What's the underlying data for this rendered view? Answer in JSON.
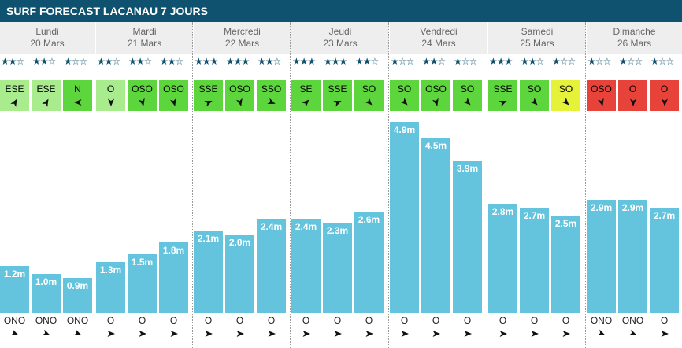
{
  "title": "SURF FORECAST LACANAU 7 JOURS",
  "colors": {
    "header": "#0f5270",
    "bar": "#65c4dd",
    "wind_light_green": "#a8ec8e",
    "wind_green": "#5cd63c",
    "wind_yellow": "#e6f23a",
    "wind_red": "#e8433a"
  },
  "days": [
    {
      "name": "Lundi",
      "date": "20 Mars"
    },
    {
      "name": "Mardi",
      "date": "21 Mars"
    },
    {
      "name": "Mercredi",
      "date": "22 Mars"
    },
    {
      "name": "Jeudi",
      "date": "23 Mars"
    },
    {
      "name": "Vendredi",
      "date": "24 Mars"
    },
    {
      "name": "Samedi",
      "date": "25 Mars"
    },
    {
      "name": "Dimanche",
      "date": "26 Mars"
    }
  ],
  "chart_data": {
    "type": "bar",
    "title": "SURF FORECAST LACANAU 7 JOURS",
    "unit": "m",
    "ylim": [
      0,
      5.5
    ],
    "categories": [
      "Lundi-1",
      "Lundi-2",
      "Lundi-3",
      "Mardi-1",
      "Mardi-2",
      "Mardi-3",
      "Mercredi-1",
      "Mercredi-2",
      "Mercredi-3",
      "Jeudi-1",
      "Jeudi-2",
      "Jeudi-3",
      "Vendredi-1",
      "Vendredi-2",
      "Vendredi-3",
      "Samedi-1",
      "Samedi-2",
      "Samedi-3",
      "Dimanche-1",
      "Dimanche-2",
      "Dimanche-3"
    ],
    "values": [
      1.2,
      1.0,
      0.9,
      1.3,
      1.5,
      1.8,
      2.1,
      2.0,
      2.4,
      2.4,
      2.3,
      2.6,
      4.9,
      4.5,
      3.9,
      2.8,
      2.7,
      2.5,
      2.9,
      2.9,
      2.7
    ],
    "value_labels": [
      "1.2m",
      "1.0m",
      "0.9m",
      "1.3m",
      "1.5m",
      "1.8m",
      "2.1m",
      "2.0m",
      "2.4m",
      "2.4m",
      "2.3m",
      "2.6m",
      "4.9m",
      "4.5m",
      "3.9m",
      "2.8m",
      "2.7m",
      "2.5m",
      "2.9m",
      "2.9m",
      "2.7m"
    ],
    "ratings": [
      2,
      2,
      1,
      2,
      2,
      2,
      3,
      3,
      2,
      3,
      3,
      2,
      1,
      2,
      1,
      3,
      2,
      1,
      1,
      1,
      1
    ],
    "max_rating": 3,
    "wind_dir": [
      "ESE",
      "ESE",
      "N",
      "O",
      "OSO",
      "OSO",
      "SSE",
      "OSO",
      "SSO",
      "SE",
      "SSE",
      "SO",
      "SO",
      "OSO",
      "SO",
      "SSE",
      "SO",
      "SO",
      "OSO",
      "O",
      "O"
    ],
    "wind_angle": [
      300,
      300,
      180,
      90,
      75,
      75,
      337,
      75,
      22,
      315,
      337,
      45,
      45,
      75,
      45,
      337,
      45,
      45,
      75,
      90,
      90
    ],
    "wind_quality": [
      "light",
      "light",
      "green",
      "light",
      "green",
      "green",
      "green",
      "green",
      "green",
      "green",
      "green",
      "green",
      "green",
      "green",
      "green",
      "green",
      "green",
      "yellow",
      "red",
      "red",
      "red"
    ],
    "swell_dir": [
      "ONO",
      "ONO",
      "ONO",
      "O",
      "O",
      "O",
      "O",
      "O",
      "O",
      "O",
      "O",
      "O",
      "O",
      "O",
      "O",
      "O",
      "O",
      "O",
      "ONO",
      "ONO",
      "O"
    ],
    "swell_angle": [
      22,
      22,
      22,
      0,
      0,
      0,
      0,
      0,
      0,
      0,
      0,
      0,
      0,
      0,
      0,
      0,
      0,
      0,
      22,
      22,
      0
    ]
  }
}
